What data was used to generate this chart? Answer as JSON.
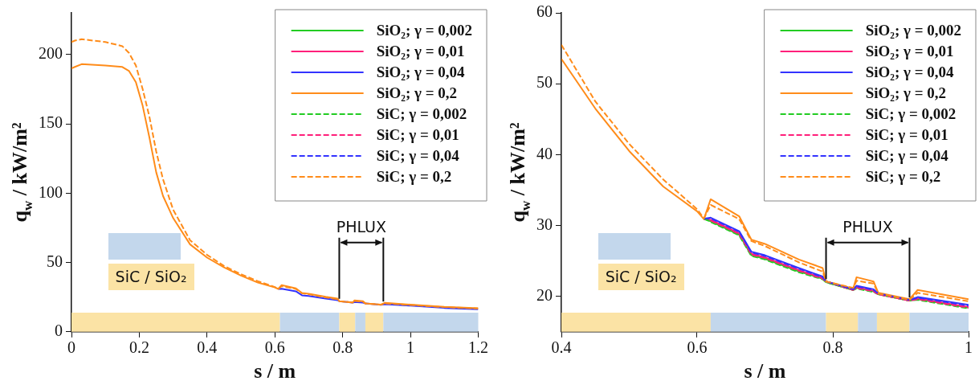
{
  "chart_data": [
    {
      "type": "line",
      "xlabel": "s / m",
      "ylabel": "q$_{w}$ / kW/m²",
      "xlim": [
        0,
        1.2
      ],
      "xticks": [
        0,
        0.2,
        0.4,
        0.6,
        0.8,
        1,
        1.2
      ],
      "ylim": [
        0,
        230
      ],
      "yticks": [
        0,
        50,
        100,
        150,
        200
      ],
      "legend": "top right",
      "x": [
        0,
        0.01,
        0.03,
        0.1,
        0.15,
        0.17,
        0.19,
        0.21,
        0.23,
        0.25,
        0.27,
        0.3,
        0.35,
        0.4,
        0.45,
        0.5,
        0.55,
        0.6,
        0.61,
        0.62,
        0.662,
        0.68,
        0.7,
        0.75,
        0.785,
        0.79,
        0.83,
        0.835,
        0.86,
        0.867,
        0.913,
        0.925,
        1.0,
        1.1,
        1.2
      ],
      "series": [
        {
          "name": "SiO₂; γ = 0,002",
          "color": "#22cc22",
          "line_style": "solid",
          "values": [
            null,
            null,
            null,
            null,
            null,
            null,
            null,
            null,
            null,
            null,
            null,
            null,
            null,
            null,
            null,
            null,
            null,
            null,
            null,
            null,
            null,
            null,
            null,
            null,
            null,
            null,
            null,
            null,
            null,
            null,
            null,
            null,
            null,
            null,
            null
          ]
        },
        {
          "name": "SiO₂; γ = 0,01",
          "color": "#ff1f7a",
          "line_style": "solid",
          "values": [
            null,
            null,
            null,
            null,
            null,
            null,
            null,
            null,
            null,
            null,
            null,
            null,
            null,
            null,
            null,
            null,
            null,
            null,
            null,
            null,
            null,
            null,
            null,
            null,
            null,
            null,
            null,
            null,
            null,
            null,
            null,
            null,
            null,
            null,
            null
          ]
        },
        {
          "name": "SiO₂; γ = 0,04",
          "color": "#3333ff",
          "line_style": "solid",
          "values": [
            null,
            null,
            null,
            null,
            null,
            null,
            null,
            null,
            null,
            null,
            null,
            null,
            null,
            null,
            null,
            null,
            null,
            null,
            30.9,
            31.1,
            29.2,
            26.3,
            25.8,
            24.0,
            22.8,
            22.1,
            21.0,
            21.5,
            21.0,
            20.4,
            19.5,
            19.9,
            18.8,
            17.2,
            16.2
          ]
        },
        {
          "name": "SiO₂; γ = 0,2",
          "color": "#ff8c1a",
          "line_style": "solid",
          "values": [
            190,
            191,
            193,
            192,
            191,
            188,
            180,
            163,
            140,
            115,
            98,
            82,
            63,
            53.5,
            46.5,
            40.5,
            35.5,
            32,
            30.9,
            33.7,
            31.3,
            28.0,
            27.4,
            25.2,
            24.0,
            22.1,
            21.1,
            22.7,
            22.1,
            20.5,
            19.6,
            20.9,
            19.6,
            18.0,
            17.0
          ]
        },
        {
          "name": "SiC; γ = 0,002",
          "color": "#22cc22",
          "line_style": "dashed",
          "values": [
            null,
            null,
            null,
            null,
            null,
            null,
            null,
            null,
            null,
            null,
            null,
            null,
            null,
            null,
            null,
            null,
            null,
            null,
            null,
            null,
            null,
            null,
            null,
            null,
            null,
            null,
            null,
            null,
            null,
            null,
            null,
            null,
            null,
            null,
            null
          ]
        },
        {
          "name": "SiC; γ = 0,01",
          "color": "#ff1f7a",
          "line_style": "dashed",
          "values": [
            null,
            null,
            null,
            null,
            null,
            null,
            null,
            null,
            null,
            null,
            null,
            null,
            null,
            null,
            null,
            null,
            null,
            null,
            null,
            null,
            null,
            null,
            null,
            null,
            null,
            null,
            null,
            null,
            null,
            null,
            null,
            null,
            null,
            null,
            null
          ]
        },
        {
          "name": "SiC; γ = 0,04",
          "color": "#3333ff",
          "line_style": "dashed",
          "values": [
            null,
            null,
            null,
            null,
            null,
            null,
            null,
            null,
            null,
            null,
            null,
            null,
            null,
            null,
            null,
            null,
            null,
            null,
            null,
            null,
            null,
            null,
            null,
            null,
            null,
            null,
            null,
            null,
            null,
            null,
            null,
            null,
            null,
            null,
            null
          ]
        },
        {
          "name": "SiC; γ = 0,2",
          "color": "#ff8c1a",
          "line_style": "dashed",
          "values": [
            209,
            210,
            211,
            209,
            206,
            201,
            192,
            175,
            155,
            130,
            110,
            88,
            66,
            55.5,
            47.5,
            41.5,
            36.5,
            32.3,
            31,
            32.9,
            30.9,
            27.8,
            27.1,
            24.8,
            23.5,
            22.1,
            21.2,
            22.2,
            21.8,
            20.4,
            19.5,
            20.5,
            19.3,
            17.8,
            16.8
          ]
        }
      ],
      "bands": [
        {
          "axis": "x",
          "from": 0,
          "to": 0.615,
          "color": "#fbe3a5"
        },
        {
          "axis": "x",
          "from": 0.615,
          "to": 0.79,
          "color": "#c3d7ec"
        },
        {
          "axis": "x",
          "from": 0.79,
          "to": 0.837,
          "color": "#fbe3a5"
        },
        {
          "axis": "x",
          "from": 0.837,
          "to": 0.867,
          "color": "#c3d7ec"
        },
        {
          "axis": "x",
          "from": 0.867,
          "to": 0.92,
          "color": "#fbe3a5"
        },
        {
          "axis": "x",
          "from": 0.92,
          "to": 1.2,
          "color": "#c3d7ec"
        }
      ],
      "ref_lines": [
        {
          "axis": "x",
          "value": 0.79,
          "label": "PHLUX",
          "color": "#111111"
        },
        {
          "axis": "x",
          "value": 0.92,
          "color": "#111111"
        }
      ],
      "annotations": [
        "SiC / SiO₂"
      ]
    },
    {
      "type": "line",
      "xlabel": "s / m",
      "ylabel": "q$_{w}$ / kW/m²",
      "xlim": [
        0.4,
        1
      ],
      "xticks": [
        0.4,
        0.6,
        0.8,
        1
      ],
      "ylim": [
        15,
        60
      ],
      "yticks": [
        20,
        30,
        40,
        50,
        60
      ],
      "legend": "top right",
      "x": [
        0.4,
        0.45,
        0.5,
        0.55,
        0.6,
        0.61,
        0.62,
        0.662,
        0.68,
        0.7,
        0.75,
        0.785,
        0.79,
        0.83,
        0.835,
        0.86,
        0.867,
        0.913,
        0.925,
        1.0
      ],
      "series": [
        {
          "name": "SiO₂; γ = 0,002",
          "color": "#22cc22",
          "line_style": "solid",
          "values": [
            null,
            null,
            null,
            null,
            null,
            30.9,
            30.6,
            28.7,
            25.8,
            25.3,
            23.5,
            22.5,
            22.0,
            20.9,
            21.2,
            20.7,
            20.3,
            19.4,
            19.6,
            18.4
          ]
        },
        {
          "name": "SiO₂; γ = 0,01",
          "color": "#ff1f7a",
          "line_style": "solid",
          "values": [
            null,
            null,
            null,
            null,
            null,
            30.9,
            30.8,
            28.9,
            26.0,
            25.5,
            23.7,
            22.6,
            22.1,
            20.9,
            21.3,
            20.8,
            20.3,
            19.4,
            19.7,
            18.5
          ]
        },
        {
          "name": "SiO₂; γ = 0,04",
          "color": "#3333ff",
          "line_style": "solid",
          "values": [
            null,
            null,
            null,
            null,
            null,
            30.9,
            31.1,
            29.2,
            26.3,
            25.8,
            24.0,
            22.8,
            22.1,
            21.0,
            21.5,
            21.0,
            20.4,
            19.5,
            19.9,
            18.8
          ]
        },
        {
          "name": "SiO₂; γ = 0,2",
          "color": "#ff8c1a",
          "line_style": "solid",
          "values": [
            53.5,
            46.5,
            40.5,
            35.5,
            32,
            30.9,
            33.7,
            31.3,
            28.0,
            27.4,
            25.2,
            24.0,
            22.1,
            21.1,
            22.7,
            22.1,
            20.5,
            19.6,
            20.9,
            19.6
          ]
        },
        {
          "name": "SiC; γ = 0,002",
          "color": "#22cc22",
          "line_style": "dashed",
          "values": [
            null,
            null,
            null,
            null,
            null,
            31,
            30.5,
            28.6,
            25.7,
            25.2,
            23.4,
            22.4,
            22.0,
            20.9,
            21.1,
            20.6,
            20.3,
            19.4,
            19.5,
            18.3
          ]
        },
        {
          "name": "SiC; γ = 0,01",
          "color": "#ff1f7a",
          "line_style": "dashed",
          "values": [
            null,
            null,
            null,
            null,
            null,
            null,
            30.7,
            28.8,
            25.9,
            25.4,
            23.6,
            22.5,
            22.1,
            20.9,
            21.2,
            20.7,
            20.3,
            19.4,
            19.6,
            18.4
          ]
        },
        {
          "name": "SiC; γ = 0,04",
          "color": "#3333ff",
          "line_style": "dashed",
          "values": [
            null,
            null,
            null,
            null,
            null,
            31,
            31.0,
            29.1,
            26.2,
            25.7,
            23.9,
            22.7,
            22.1,
            21.0,
            21.4,
            20.9,
            20.4,
            19.5,
            19.8,
            18.7
          ]
        },
        {
          "name": "SiC; γ = 0,2",
          "color": "#ff8c1a",
          "line_style": "dashed",
          "values": [
            55.5,
            47.5,
            41.5,
            36.5,
            32.3,
            31,
            32.9,
            30.9,
            27.8,
            27.1,
            24.8,
            23.5,
            22.1,
            21.2,
            22.2,
            21.8,
            20.4,
            19.5,
            20.5,
            19.3
          ]
        }
      ],
      "bands": [
        {
          "axis": "x",
          "from": 0.4,
          "to": 0.62,
          "color": "#fbe3a5"
        },
        {
          "axis": "x",
          "from": 0.62,
          "to": 0.79,
          "color": "#c3d7ec"
        },
        {
          "axis": "x",
          "from": 0.79,
          "to": 0.837,
          "color": "#fbe3a5"
        },
        {
          "axis": "x",
          "from": 0.837,
          "to": 0.865,
          "color": "#c3d7ec"
        },
        {
          "axis": "x",
          "from": 0.865,
          "to": 0.913,
          "color": "#fbe3a5"
        },
        {
          "axis": "x",
          "from": 0.913,
          "to": 1,
          "color": "#c3d7ec"
        }
      ],
      "ref_lines": [
        {
          "axis": "x",
          "value": 0.79,
          "label": "PHLUX",
          "color": "#111111"
        },
        {
          "axis": "x",
          "value": 0.913,
          "color": "#111111"
        }
      ],
      "annotations": [
        "SiC / SiO₂"
      ]
    }
  ]
}
